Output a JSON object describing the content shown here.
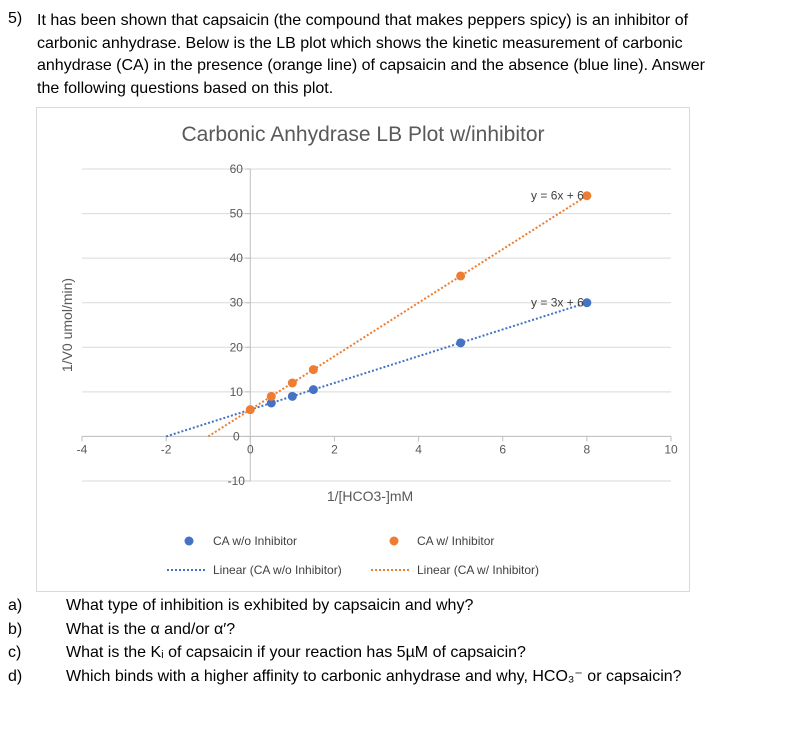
{
  "question": {
    "number": "5)",
    "lines": [
      "It has been shown that capsaicin (the compound that makes peppers spicy) is an inhibitor of",
      "carbonic anhydrase.  Below is the LB plot which shows the kinetic measurement of carbonic",
      "anhydrase (CA) in the presence (orange line) of capsaicin and the absence (blue line).  Answer",
      "the following questions based on this plot."
    ]
  },
  "sub_questions": [
    {
      "letter": "a)",
      "text": "What type of inhibition is exhibited by capsaicin and why?"
    },
    {
      "letter": "b)",
      "text": "What is the α and/or α′?"
    },
    {
      "letter": "c)",
      "text": "What is the Kᵢ of capsaicin if your reaction has 5µM of capsaicin?"
    },
    {
      "letter": "d)",
      "text": "Which binds with a higher affinity to carbonic anhydrase and why, HCO₃⁻ or capsaicin?"
    }
  ],
  "chart_data": {
    "type": "scatter",
    "title": "Carbonic Anhydrase LB Plot w/inhibitor",
    "xlabel": "1/[HCO3-]mM",
    "ylabel": "1/V0 umol/min)",
    "xlim": [
      -4,
      10
    ],
    "ylim": [
      -10,
      60
    ],
    "x_ticks": [
      -4,
      -2,
      0,
      2,
      4,
      6,
      8,
      10
    ],
    "y_ticks": [
      -10,
      0,
      10,
      20,
      30,
      40,
      50,
      60
    ],
    "grid": "horizontal",
    "legend_position": "bottom",
    "series": [
      {
        "name": "CA w/o Inhibitor",
        "color": "#4472c4",
        "points": [
          [
            0.5,
            7.5
          ],
          [
            1,
            9
          ],
          [
            1.5,
            10.5
          ],
          [
            5,
            21
          ],
          [
            8,
            30
          ]
        ],
        "trendline": {
          "name": "Linear (CA w/o Inhibitor)",
          "slope": 3,
          "intercept": 6,
          "x_range": [
            -2,
            8
          ],
          "equation": "y = 3x + 6"
        }
      },
      {
        "name": "CA w/ Inhibitor",
        "color": "#ed7d31",
        "points": [
          [
            0,
            6
          ],
          [
            0.5,
            9
          ],
          [
            1,
            12
          ],
          [
            1.5,
            15
          ],
          [
            5,
            36
          ],
          [
            8,
            54
          ]
        ],
        "trendline": {
          "name": "Linear (CA w/ Inhibitor)",
          "slope": 6,
          "intercept": 6,
          "x_range": [
            -1,
            8
          ],
          "equation": "y = 6x + 6"
        }
      }
    ]
  }
}
